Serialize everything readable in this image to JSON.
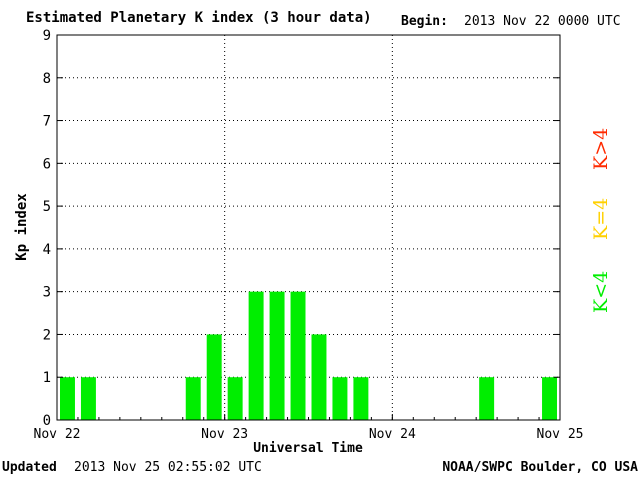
{
  "header": {
    "title": "Estimated Planetary K index (3 hour data)",
    "begin_label": "Begin:",
    "begin_value": "2013 Nov 22 0000 UTC"
  },
  "footer": {
    "updated_label": "Updated",
    "updated_value": "2013 Nov 25 02:55:02 UTC",
    "credit": "NOAA/SWPC Boulder, CO USA"
  },
  "legend": {
    "high": {
      "label": "K>4",
      "color": "#ff2a00"
    },
    "mid": {
      "label": "K=4",
      "color": "#ffd000"
    },
    "low": {
      "label": "K<4",
      "color": "#00ee00"
    }
  },
  "chart_data": {
    "type": "bar",
    "title": "Estimated Planetary K index (3 hour data)",
    "xlabel": "Universal Time",
    "ylabel": "Kp index",
    "ylim": [
      0,
      9
    ],
    "yticks": [
      "0",
      "1",
      "2",
      "3",
      "4",
      "5",
      "6",
      "7",
      "8",
      "9"
    ],
    "xticks": [
      "Nov 22",
      "Nov 23",
      "Nov 24",
      "Nov 25"
    ],
    "grid": true,
    "bar_color": "#00ee00",
    "x": [
      "2013-11-22 00",
      "2013-11-22 03",
      "2013-11-22 06",
      "2013-11-22 09",
      "2013-11-22 12",
      "2013-11-22 15",
      "2013-11-22 18",
      "2013-11-22 21",
      "2013-11-23 00",
      "2013-11-23 03",
      "2013-11-23 06",
      "2013-11-23 09",
      "2013-11-23 12",
      "2013-11-23 15",
      "2013-11-23 18",
      "2013-11-23 21",
      "2013-11-24 00",
      "2013-11-24 03",
      "2013-11-24 06",
      "2013-11-24 09",
      "2013-11-24 12",
      "2013-11-24 15",
      "2013-11-24 18",
      "2013-11-24 21"
    ],
    "values": [
      1,
      1,
      0,
      0,
      0,
      0,
      1,
      2,
      1,
      3,
      3,
      3,
      2,
      1,
      1,
      0,
      0,
      0,
      0,
      0,
      1,
      0,
      0,
      1
    ]
  }
}
